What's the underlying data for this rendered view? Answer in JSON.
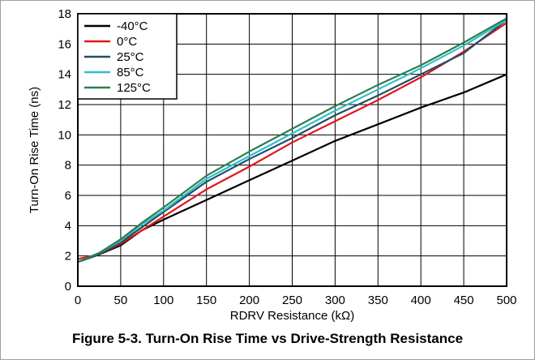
{
  "caption": "Figure 5-3. Turn-On Rise Time vs Drive-Strength Resistance",
  "chart_data": {
    "type": "line",
    "title": "",
    "xlabel": "RDRV Resistance (kΩ)",
    "ylabel": "Turn-On Rise Time (ns)",
    "xlim": [
      0,
      500
    ],
    "ylim": [
      0,
      18
    ],
    "xticks": [
      0,
      50,
      100,
      150,
      200,
      250,
      300,
      350,
      400,
      450,
      500
    ],
    "yticks": [
      0,
      2,
      4,
      6,
      8,
      10,
      12,
      14,
      16,
      18
    ],
    "grid": true,
    "legend_position": "top-left",
    "series": [
      {
        "name": "-40°C",
        "color": "#000000",
        "x": [
          0,
          25,
          50,
          75,
          100,
          150,
          200,
          250,
          300,
          350,
          400,
          450,
          500
        ],
        "y": [
          1.6,
          2.1,
          2.7,
          3.7,
          4.4,
          5.7,
          7.0,
          8.3,
          9.6,
          10.7,
          11.8,
          12.8,
          14.0
        ]
      },
      {
        "name": "0°C",
        "color": "#e0161b",
        "x": [
          0,
          25,
          50,
          75,
          100,
          150,
          200,
          250,
          300,
          350,
          400,
          450,
          500
        ],
        "y": [
          1.8,
          2.1,
          2.8,
          3.7,
          4.6,
          6.4,
          7.9,
          9.5,
          10.9,
          12.3,
          13.8,
          15.5,
          17.4
        ]
      },
      {
        "name": "25°C",
        "color": "#1f4e66",
        "x": [
          0,
          25,
          50,
          75,
          100,
          150,
          200,
          250,
          300,
          350,
          400,
          450,
          500
        ],
        "y": [
          1.6,
          2.1,
          2.9,
          3.9,
          4.9,
          6.9,
          8.4,
          9.8,
          11.3,
          12.6,
          14.0,
          15.4,
          17.6
        ]
      },
      {
        "name": "85°C",
        "color": "#2fbfcb",
        "x": [
          0,
          25,
          50,
          75,
          100,
          150,
          200,
          250,
          300,
          350,
          400,
          450,
          500
        ],
        "y": [
          1.6,
          2.2,
          3.0,
          4.1,
          5.0,
          7.1,
          8.6,
          10.1,
          11.6,
          13.0,
          14.4,
          15.9,
          17.6
        ]
      },
      {
        "name": "125°C",
        "color": "#2e7d4f",
        "x": [
          0,
          25,
          50,
          75,
          100,
          150,
          200,
          250,
          300,
          350,
          400,
          450,
          500
        ],
        "y": [
          1.6,
          2.2,
          3.1,
          4.2,
          5.2,
          7.3,
          8.9,
          10.4,
          11.9,
          13.3,
          14.6,
          16.1,
          17.7
        ]
      }
    ]
  }
}
